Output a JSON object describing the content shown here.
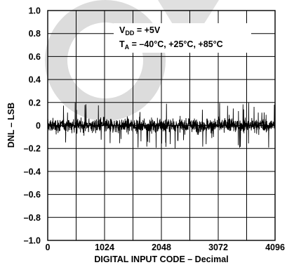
{
  "chart_data": {
    "type": "line",
    "xlabel": "DIGITAL INPUT CODE – Decimal",
    "ylabel": "DNL – LSB",
    "xlim": [
      0,
      4096
    ],
    "ylim": [
      -1.0,
      1.0
    ],
    "x_ticks": [
      "0",
      "1024",
      "2048",
      "3072",
      "4096"
    ],
    "y_ticks": [
      "1.0",
      "0.8",
      "0.6",
      "0.4",
      "0.2",
      "0",
      "–0.2",
      "–0.4",
      "–0.6",
      "–0.8",
      "–1.0"
    ],
    "grid": true,
    "annotation": {
      "vdd_main": "V",
      "vdd_sub": "DD",
      "vdd_value": " = +5V",
      "ta_main": "T",
      "ta_sub": "A",
      "ta_value": " = –40°C, +25°C, +85°C"
    },
    "series": [
      {
        "x_range": [
          0,
          4095
        ],
        "noise_band": [
          -0.2,
          0.2
        ],
        "typical_band": [
          -0.1,
          0.1
        ]
      }
    ],
    "colors": {
      "line": "#000000",
      "grid": "#000000",
      "watermark": "#d9d9d9"
    }
  }
}
